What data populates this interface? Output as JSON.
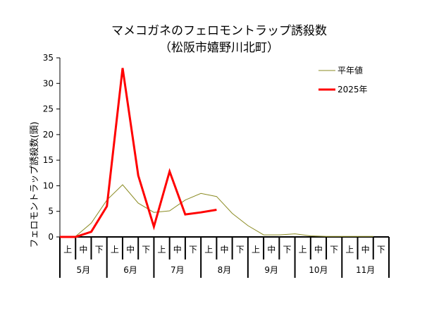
{
  "chart_data": {
    "type": "line",
    "title": "マメコガネのフェロモントラップ誘殺数",
    "subtitle": "（松阪市嬉野川北町）",
    "ylabel": "フェロモントラップ誘殺数(頭)",
    "xlabel": "",
    "ylim": [
      0,
      35
    ],
    "yticks": [
      0,
      5,
      10,
      15,
      20,
      25,
      30,
      35
    ],
    "dekads": [
      "上",
      "中",
      "下",
      "上",
      "中",
      "下",
      "上",
      "中",
      "下",
      "上",
      "中",
      "下",
      "上",
      "中",
      "下",
      "上",
      "中",
      "下",
      "上",
      "中",
      "下"
    ],
    "months": [
      "5月",
      "6月",
      "7月",
      "8月",
      "9月",
      "10月",
      "11月"
    ],
    "legend_position": "top-right",
    "grid": false,
    "series": [
      {
        "name": "平年値",
        "color": "#8b8b23",
        "values": [
          0,
          0.1,
          2.7,
          7.2,
          10.2,
          6.6,
          4.8,
          5.1,
          7.2,
          8.5,
          7.9,
          4.6,
          2.2,
          0.4,
          0.4,
          0.6,
          0.2,
          0.1,
          0.1,
          0.1,
          0.1
        ]
      },
      {
        "name": "2025年",
        "color": "#ff0000",
        "values": [
          0,
          0,
          1,
          6,
          33,
          12,
          2,
          12.8,
          4.4,
          4.8,
          5.3,
          null,
          null,
          null,
          null,
          null,
          null,
          null,
          null,
          null,
          null
        ]
      }
    ]
  }
}
